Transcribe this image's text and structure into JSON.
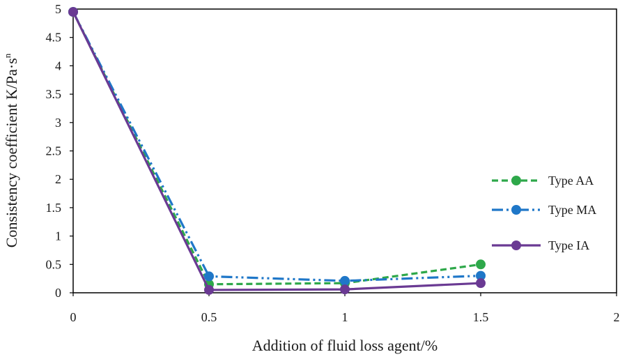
{
  "chart_data": {
    "type": "line",
    "xlabel": "Addition of fluid loss agent/%",
    "ylabel": "Consistency coefficient K/Pa·s",
    "ylabel_superscript": "n",
    "xlim": [
      0,
      2
    ],
    "ylim": [
      0,
      5
    ],
    "x_ticks": [
      "0",
      "0.5",
      "1",
      "1.5",
      "2"
    ],
    "y_ticks": [
      "0",
      "0.5",
      "1",
      "1.5",
      "2",
      "2.5",
      "3",
      "3.5",
      "4",
      "4.5",
      "5"
    ],
    "grid": false,
    "legend_position": "right",
    "series": [
      {
        "name": "Type AA",
        "color": "#2ea84a",
        "dash": "dashed",
        "x": [
          0,
          0.5,
          1,
          1.5
        ],
        "values": [
          4.95,
          0.15,
          0.17,
          0.5
        ]
      },
      {
        "name": "Type MA",
        "color": "#1f77c8",
        "dash": "dash-dot-dot",
        "x": [
          0,
          0.5,
          1,
          1.5
        ],
        "values": [
          4.95,
          0.29,
          0.21,
          0.3
        ]
      },
      {
        "name": "Type IA",
        "color": "#6a3a93",
        "dash": "solid",
        "x": [
          0,
          0.5,
          1,
          1.5
        ],
        "values": [
          4.95,
          0.05,
          0.06,
          0.17
        ]
      }
    ]
  }
}
